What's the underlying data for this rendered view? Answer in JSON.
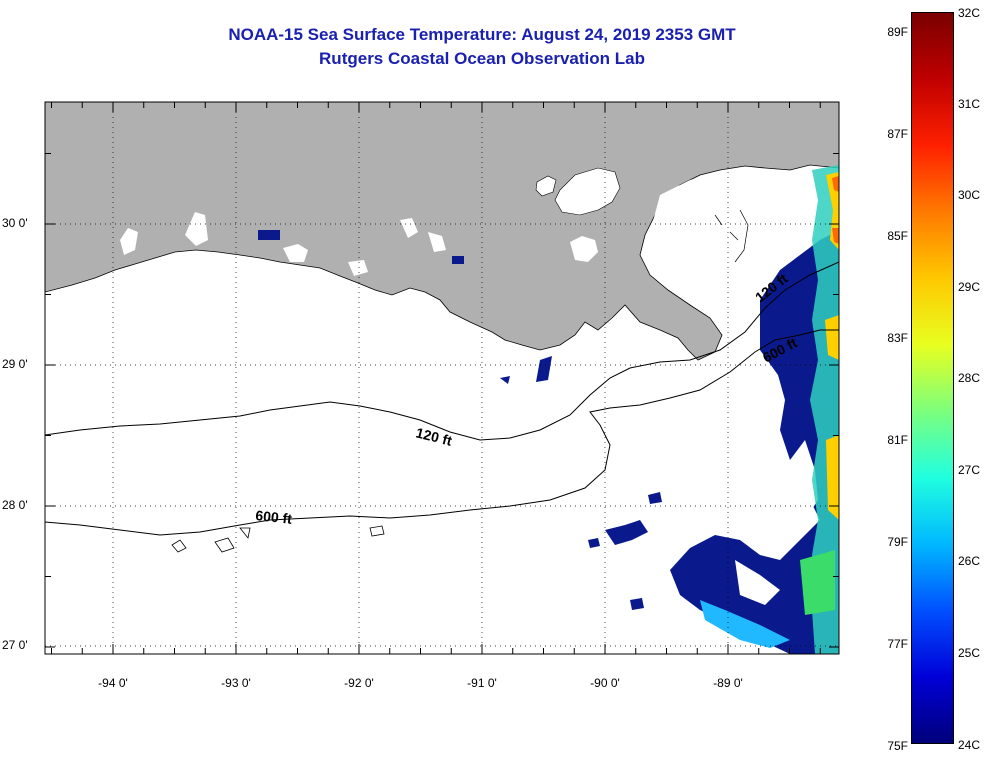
{
  "title": {
    "line1": "NOAA-15 Sea Surface Temperature:  August 24, 2019 2353 GMT",
    "line2": "Rutgers Coastal Ocean Observation Lab"
  },
  "colors": {
    "title": "#1a20b0",
    "land": "#b0b0b0",
    "cloud": "#ffffff",
    "sst_cold": "#0a1a8c"
  },
  "axes": {
    "latitude_labels": [
      "30 0'",
      "29 0'",
      "28 0'",
      "27 0'"
    ],
    "longitude_labels": [
      "-94 0'",
      "-93 0'",
      "-92 0'",
      "-91 0'",
      "-90 0'",
      "-89 0'"
    ]
  },
  "contours": {
    "shelf_120": "120 ft",
    "slope_600": "600 ft",
    "east_120": "120 ft",
    "east_600": "600 ft"
  },
  "colorbar": {
    "fahrenheit_labels": [
      "89F",
      "87F",
      "85F",
      "83F",
      "81F",
      "79F",
      "77F",
      "75F"
    ],
    "celsius_labels": [
      "32C",
      "31C",
      "30C",
      "29C",
      "28C",
      "27C",
      "26C",
      "25C",
      "24C"
    ],
    "gradient": [
      "#7a0000",
      "#c00000",
      "#ff2000",
      "#ff7a00",
      "#ffc800",
      "#e8ff20",
      "#7cff7c",
      "#20ffe0",
      "#00b8ff",
      "#0050ff",
      "#0000d8",
      "#00007a"
    ]
  }
}
